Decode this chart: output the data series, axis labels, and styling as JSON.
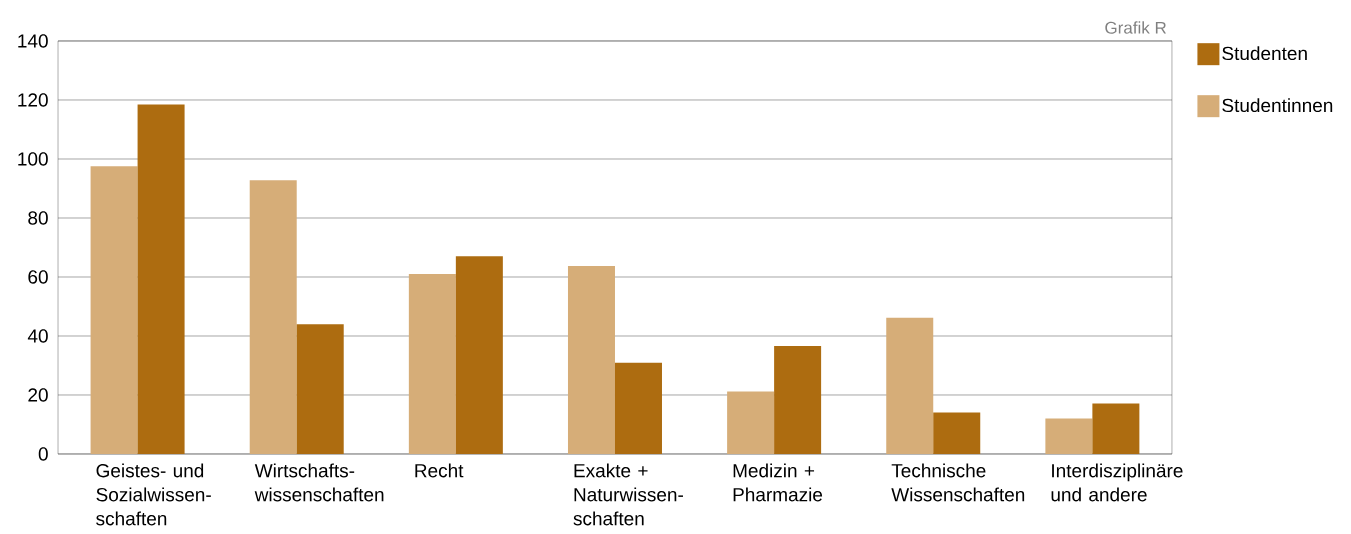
{
  "chart_data": {
    "type": "bar",
    "annotations": [
      "Grafik R"
    ],
    "categories": [
      "Geistes- und Sozialwissen-schaften",
      "Wirtschafts-wissenschaften",
      "Recht",
      "Exakte + Naturwissen-schaften",
      "Medizin + Pharmazie",
      "Technische Wissenschaften",
      "Interdisziplinäre und andere"
    ],
    "series": [
      {
        "name": "Studentinnen",
        "color": "#d6ad78",
        "values": [
          97.5,
          92.8,
          61.0,
          63.7,
          21.2,
          46.2,
          12.0
        ]
      },
      {
        "name": "Studenten",
        "color": "#ad6c10",
        "values": [
          118.5,
          44.0,
          67.0,
          30.9,
          36.6,
          14.1,
          17.1
        ]
      }
    ],
    "ylim": [
      0,
      140
    ],
    "yticks": [
      0,
      20,
      40,
      60,
      80,
      100,
      120,
      140
    ],
    "grid": "y",
    "legend": "top right"
  }
}
